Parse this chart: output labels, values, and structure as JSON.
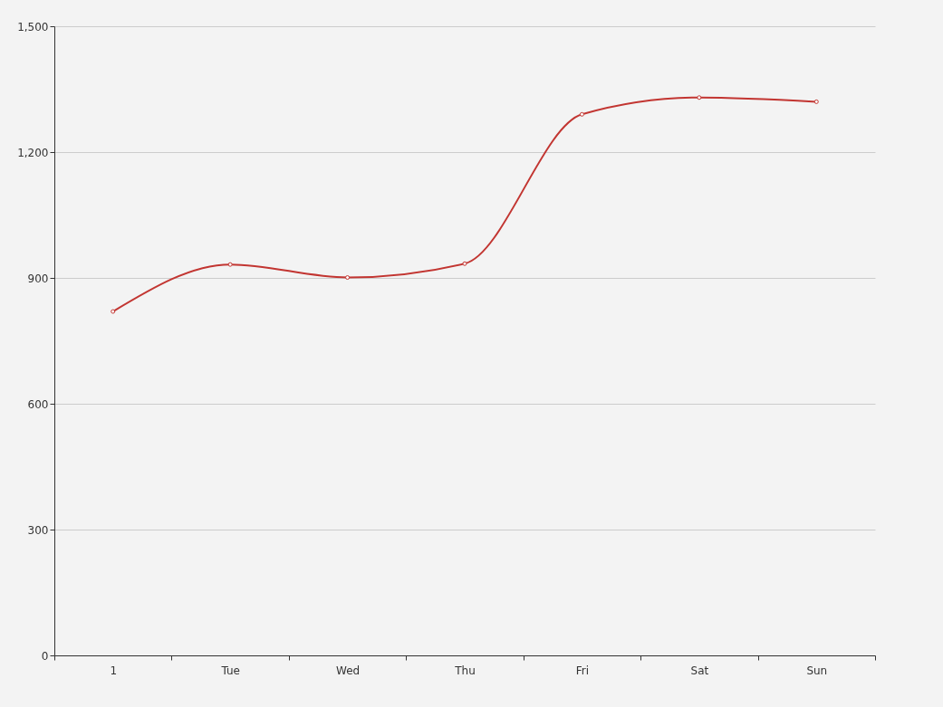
{
  "chart_data": {
    "type": "line",
    "categories": [
      "1",
      "Tue",
      "Wed",
      "Thu",
      "Fri",
      "Sat",
      "Sun"
    ],
    "series": [
      {
        "color": "#c23531",
        "values": [
          820,
          932,
          901,
          934,
          1290,
          1330,
          1320
        ]
      }
    ],
    "ylim": [
      0,
      1500
    ],
    "yticks": [
      0,
      300,
      600,
      900,
      {
        "value": 1200,
        "label": "1,200"
      },
      {
        "value": 1500,
        "label": "1,500"
      }
    ],
    "grid": "y",
    "marker": "circle",
    "line_style": "solid",
    "legend": false
  }
}
